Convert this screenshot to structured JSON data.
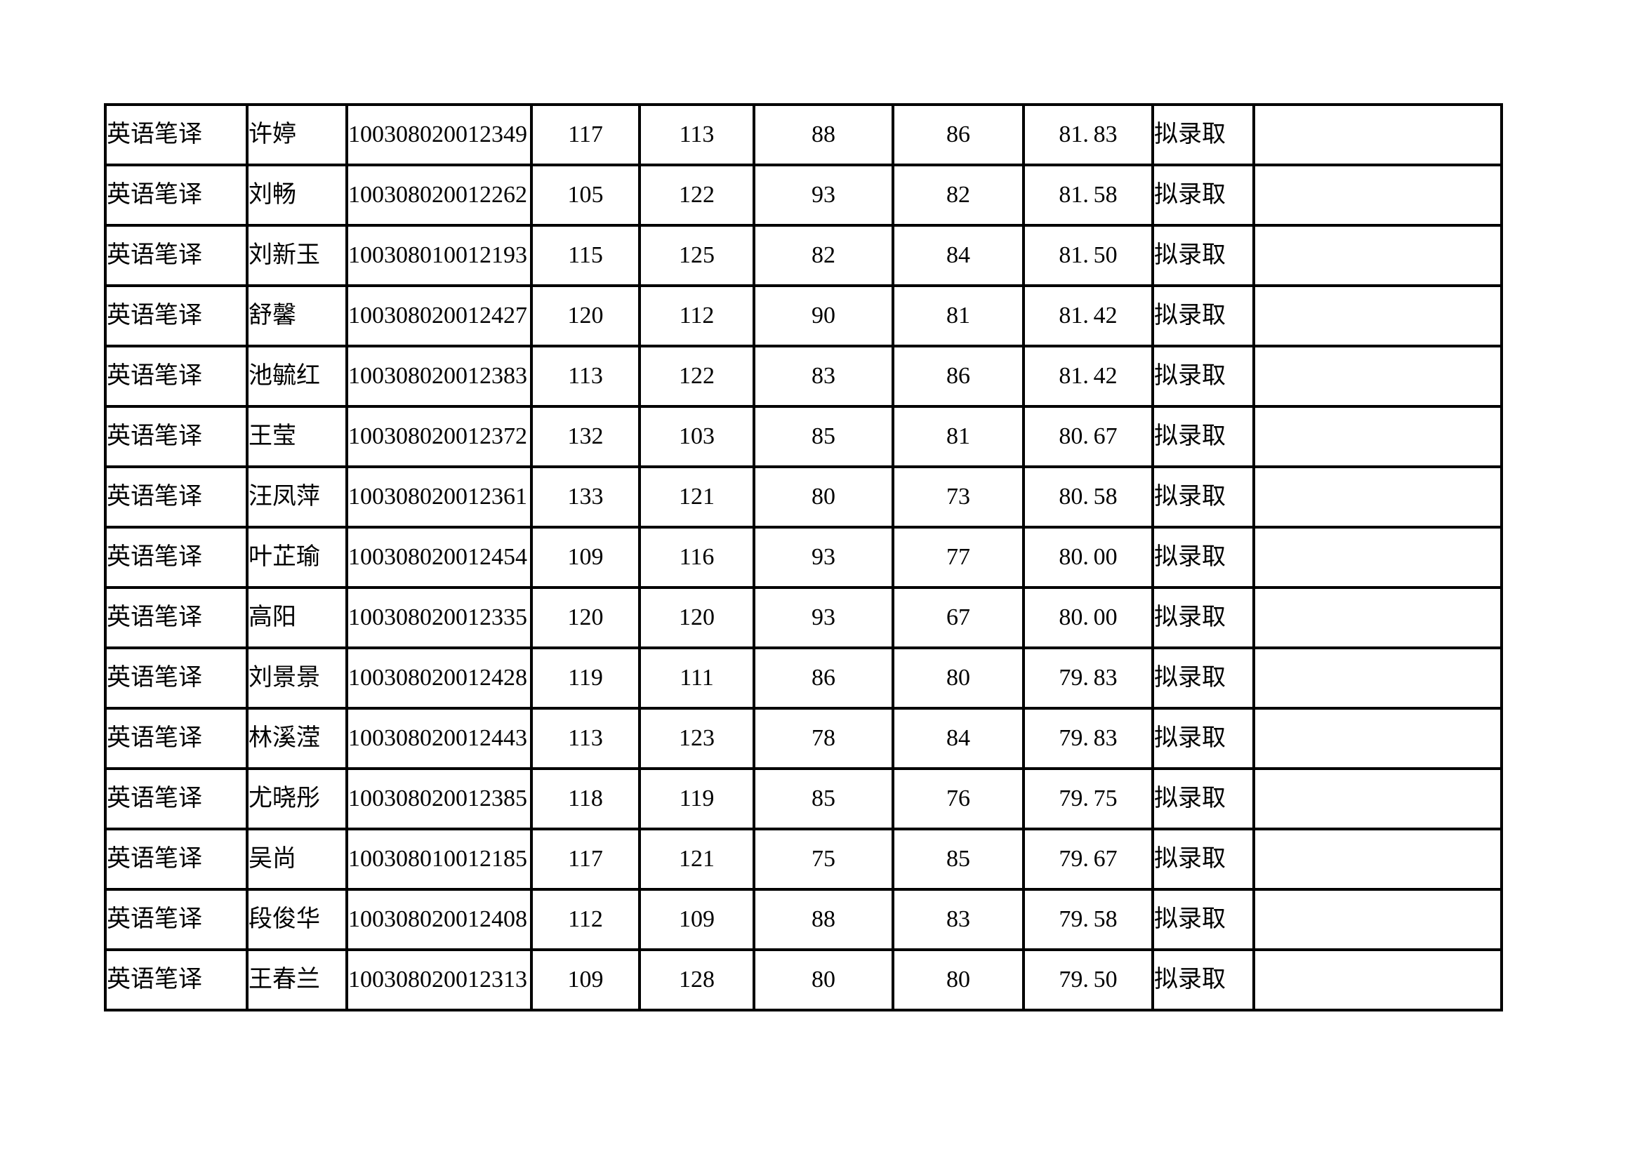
{
  "styles": {
    "page_background": "#ffffff",
    "border_color": "#000000",
    "text_color": "#000000"
  },
  "table": {
    "columns": [
      {
        "key": "major",
        "align": "left"
      },
      {
        "key": "name",
        "align": "left"
      },
      {
        "key": "candidate_id",
        "align": "left"
      },
      {
        "key": "score_1",
        "align": "center"
      },
      {
        "key": "score_2",
        "align": "center"
      },
      {
        "key": "score_3",
        "align": "center"
      },
      {
        "key": "score_4",
        "align": "center"
      },
      {
        "key": "total",
        "align": "center"
      },
      {
        "key": "status",
        "align": "status"
      },
      {
        "key": "note",
        "align": "left"
      }
    ],
    "rows": [
      {
        "major": "英语笔译",
        "name": "许婷",
        "candidate_id": "100308020012349",
        "score_1": "117",
        "score_2": "113",
        "score_3": "88",
        "score_4": "86",
        "total": "81.83",
        "status": "拟录取",
        "note": ""
      },
      {
        "major": "英语笔译",
        "name": "刘畅",
        "candidate_id": "100308020012262",
        "score_1": "105",
        "score_2": "122",
        "score_3": "93",
        "score_4": "82",
        "total": "81.58",
        "status": "拟录取",
        "note": ""
      },
      {
        "major": "英语笔译",
        "name": "刘新玉",
        "candidate_id": "100308010012193",
        "score_1": "115",
        "score_2": "125",
        "score_3": "82",
        "score_4": "84",
        "total": "81.50",
        "status": "拟录取",
        "note": ""
      },
      {
        "major": "英语笔译",
        "name": "舒馨",
        "candidate_id": "100308020012427",
        "score_1": "120",
        "score_2": "112",
        "score_3": "90",
        "score_4": "81",
        "total": "81.42",
        "status": "拟录取",
        "note": ""
      },
      {
        "major": "英语笔译",
        "name": "池毓红",
        "candidate_id": "100308020012383",
        "score_1": "113",
        "score_2": "122",
        "score_3": "83",
        "score_4": "86",
        "total": "81.42",
        "status": "拟录取",
        "note": ""
      },
      {
        "major": "英语笔译",
        "name": "王莹",
        "candidate_id": "100308020012372",
        "score_1": "132",
        "score_2": "103",
        "score_3": "85",
        "score_4": "81",
        "total": "80.67",
        "status": "拟录取",
        "note": ""
      },
      {
        "major": "英语笔译",
        "name": "汪凤萍",
        "candidate_id": "100308020012361",
        "score_1": "133",
        "score_2": "121",
        "score_3": "80",
        "score_4": "73",
        "total": "80.58",
        "status": "拟录取",
        "note": ""
      },
      {
        "major": "英语笔译",
        "name": "叶芷瑜",
        "candidate_id": "100308020012454",
        "score_1": "109",
        "score_2": "116",
        "score_3": "93",
        "score_4": "77",
        "total": "80.00",
        "status": "拟录取",
        "note": ""
      },
      {
        "major": "英语笔译",
        "name": "高阳",
        "candidate_id": "100308020012335",
        "score_1": "120",
        "score_2": "120",
        "score_3": "93",
        "score_4": "67",
        "total": "80.00",
        "status": "拟录取",
        "note": ""
      },
      {
        "major": "英语笔译",
        "name": "刘景景",
        "candidate_id": "100308020012428",
        "score_1": "119",
        "score_2": "111",
        "score_3": "86",
        "score_4": "80",
        "total": "79.83",
        "status": "拟录取",
        "note": ""
      },
      {
        "major": "英语笔译",
        "name": "林溪滢",
        "candidate_id": "100308020012443",
        "score_1": "113",
        "score_2": "123",
        "score_3": "78",
        "score_4": "84",
        "total": "79.83",
        "status": "拟录取",
        "note": ""
      },
      {
        "major": "英语笔译",
        "name": "尤晓彤",
        "candidate_id": "100308020012385",
        "score_1": "118",
        "score_2": "119",
        "score_3": "85",
        "score_4": "76",
        "total": "79.75",
        "status": "拟录取",
        "note": ""
      },
      {
        "major": "英语笔译",
        "name": "吴尚",
        "candidate_id": "100308010012185",
        "score_1": "117",
        "score_2": "121",
        "score_3": "75",
        "score_4": "85",
        "total": "79.67",
        "status": "拟录取",
        "note": ""
      },
      {
        "major": "英语笔译",
        "name": "段俊华",
        "candidate_id": "100308020012408",
        "score_1": "112",
        "score_2": "109",
        "score_3": "88",
        "score_4": "83",
        "total": "79.58",
        "status": "拟录取",
        "note": ""
      },
      {
        "major": "英语笔译",
        "name": "王春兰",
        "candidate_id": "100308020012313",
        "score_1": "109",
        "score_2": "128",
        "score_3": "80",
        "score_4": "80",
        "total": "79.50",
        "status": "拟录取",
        "note": ""
      }
    ]
  }
}
